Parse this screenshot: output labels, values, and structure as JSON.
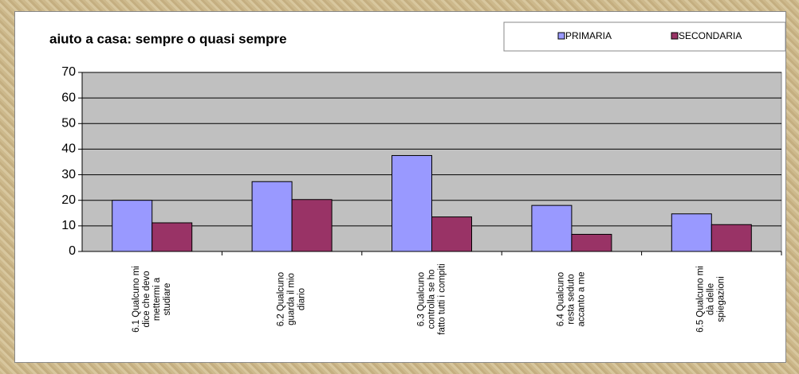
{
  "chart_data": {
    "type": "bar",
    "title": "aiuto a casa: sempre o quasi sempre",
    "categories": [
      "6.1 Qualcuno mi dice che devo mettermi a studiare",
      "6.2 Qualcuno guarda il mio diario",
      "6.3 Qualcuno controlla se ho fatto tutti i compiti",
      "6.4 Qualcuno resta seduto accanto a me",
      "6.5 Qualcuno mi dà delle spiegazioni"
    ],
    "series": [
      {
        "name": "PRIMARIA",
        "color": "#9999ff",
        "values": [
          20,
          27.3,
          37.5,
          18,
          14.7
        ]
      },
      {
        "name": "SECONDARIA",
        "color": "#993366",
        "values": [
          11.2,
          20.3,
          13.5,
          6.7,
          10.5
        ]
      }
    ],
    "ylim": [
      0,
      70
    ],
    "yticks": [
      0,
      10,
      20,
      30,
      40,
      50,
      60,
      70
    ],
    "grid": true,
    "legend": "top-right"
  }
}
